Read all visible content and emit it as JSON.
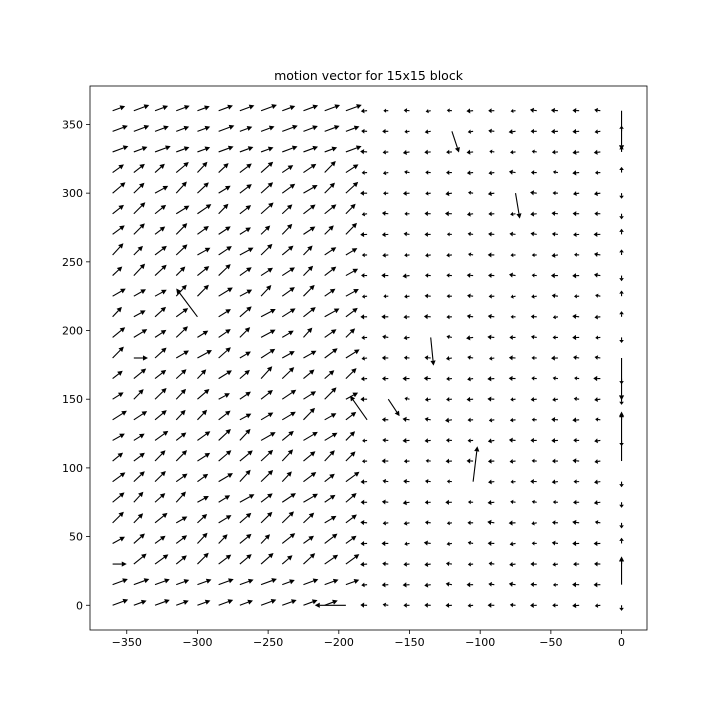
{
  "chart_data": {
    "type": "quiver",
    "title": "motion vector for 15x15 block",
    "xlabel": "",
    "ylabel": "",
    "xlim": [
      -376,
      18
    ],
    "ylim": [
      -18,
      378
    ],
    "x_ticks": [
      -350,
      -300,
      -250,
      -200,
      -150,
      -100,
      -50,
      0
    ],
    "y_ticks": [
      0,
      50,
      100,
      150,
      200,
      250,
      300,
      350
    ],
    "x_tick_labels": [
      "−350",
      "−300",
      "−250",
      "−200",
      "−150",
      "−100",
      "−50",
      "0"
    ],
    "y_tick_labels": [
      "0",
      "50",
      "100",
      "150",
      "200",
      "250",
      "300",
      "350"
    ],
    "grid": false,
    "arrow_color": "#000000",
    "grid_x": [
      -360,
      -345,
      -330,
      -315,
      -300,
      -285,
      -270,
      -255,
      -240,
      -225,
      -210,
      -195,
      -180,
      -165,
      -150,
      -135,
      -120,
      -105,
      -90,
      -75,
      -60,
      -45,
      -30,
      -15,
      0
    ],
    "grid_y": [
      0,
      15,
      30,
      45,
      60,
      75,
      90,
      105,
      120,
      135,
      150,
      165,
      180,
      195,
      210,
      225,
      240,
      255,
      270,
      285,
      300,
      315,
      330,
      345,
      360
    ],
    "field_description": "Left region (x < -190) arrows point up-right; right region (x > -185) arrows point left; x = 0 column points up/down.",
    "notable_vectors": [
      {
        "x": -360,
        "y": 30,
        "u": 10,
        "v": 0
      },
      {
        "x": -345,
        "y": 180,
        "u": 10,
        "v": 0
      },
      {
        "x": -300,
        "y": 210,
        "u": -15,
        "v": 20
      },
      {
        "x": -195,
        "y": 0,
        "u": -22,
        "v": 0
      },
      {
        "x": -180,
        "y": 135,
        "u": -12,
        "v": 17
      },
      {
        "x": -165,
        "y": 150,
        "u": 8,
        "v": -12
      },
      {
        "x": -135,
        "y": 195,
        "u": 2,
        "v": -20
      },
      {
        "x": -120,
        "y": 345,
        "u": 5,
        "v": -15
      },
      {
        "x": -105,
        "y": 90,
        "u": 3,
        "v": 25
      },
      {
        "x": -75,
        "y": 300,
        "u": 3,
        "v": -18
      },
      {
        "x": 0,
        "y": 360,
        "u": 0,
        "v": -28
      },
      {
        "x": 0,
        "y": 180,
        "u": 0,
        "v": -30
      },
      {
        "x": 0,
        "y": 105,
        "u": 0,
        "v": 35
      },
      {
        "x": 0,
        "y": 15,
        "u": 0,
        "v": 20
      }
    ]
  }
}
